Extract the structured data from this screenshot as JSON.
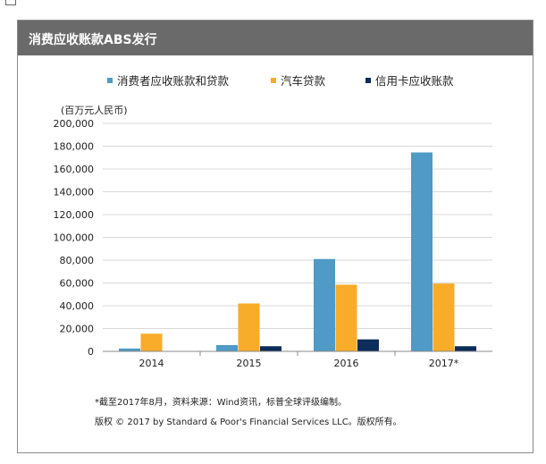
{
  "header": {
    "title": "消费应收账款ABS发行"
  },
  "unit_label": "(百万元人民币)",
  "footnote": "*截至2017年8月，资料来源：Wind资讯，标普全球评级编制。",
  "copyright": "版权 © 2017 by Standard & Poor's Financial Services LLC。版权所有。",
  "chart_data": {
    "type": "bar",
    "title": "消费应收账款ABS发行",
    "ylabel": "(百万元人民币)",
    "categories": [
      "2014",
      "2015",
      "2016",
      "2017*"
    ],
    "series": [
      {
        "name": "消费者应收账款和贷款",
        "color": "#4f9ac6",
        "values": [
          2500,
          5500,
          81000,
          174500
        ]
      },
      {
        "name": "汽车贷款",
        "color": "#f8ac2a",
        "values": [
          15500,
          42000,
          58500,
          59500
        ]
      },
      {
        "name": "信用卡应收账款",
        "color": "#0c2c59",
        "values": [
          0,
          4500,
          10500,
          4500
        ]
      }
    ],
    "ylim": [
      0,
      200000
    ],
    "yticks": [
      0,
      20000,
      40000,
      60000,
      80000,
      100000,
      120000,
      140000,
      160000,
      180000,
      200000
    ],
    "ytick_labels": [
      "0",
      "20,000",
      "40,000",
      "60,000",
      "80,000",
      "100,000",
      "120,000",
      "140,000",
      "160,000",
      "180,000",
      "200,000"
    ],
    "grid": true,
    "legend_position": "top"
  }
}
